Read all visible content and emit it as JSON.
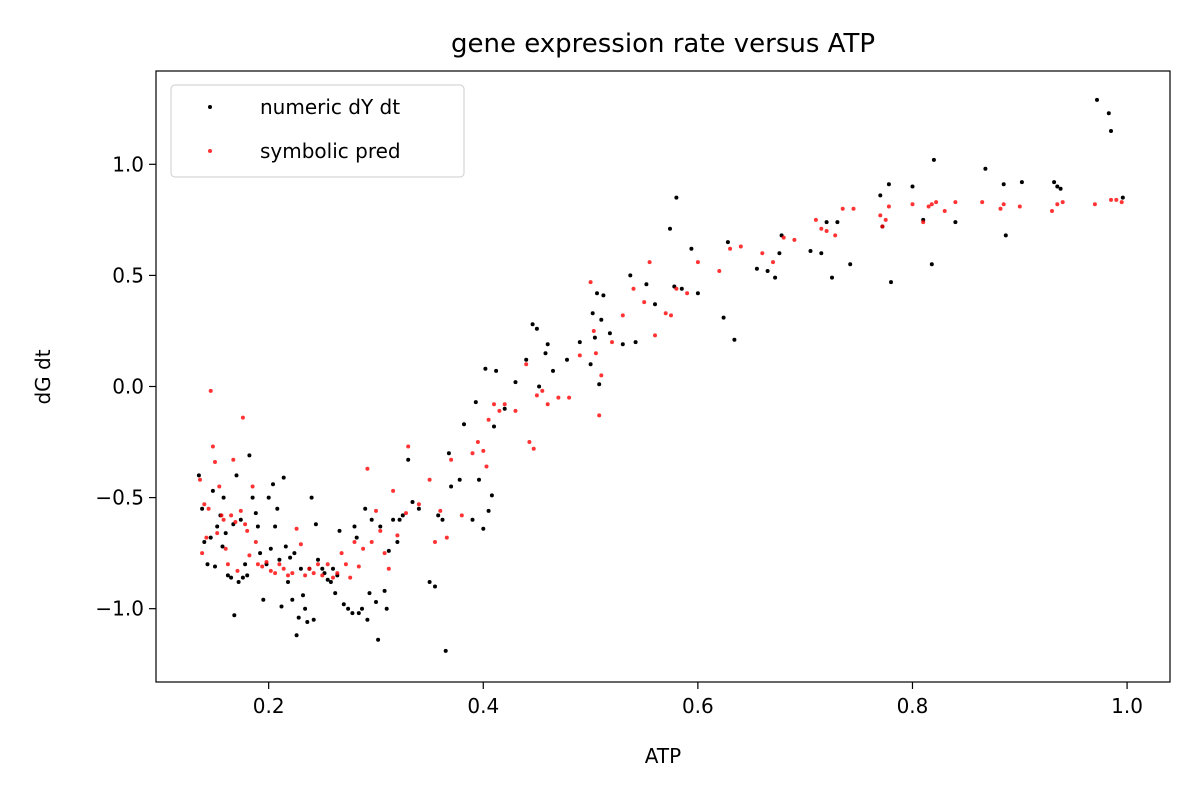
{
  "chart_data": {
    "type": "scatter",
    "title": "gene expression rate versus ATP",
    "xlabel": "ATP",
    "ylabel": "dG dt",
    "xlim": [
      0.095,
      1.04
    ],
    "ylim": [
      -1.33,
      1.42
    ],
    "xticks": [
      0.2,
      0.4,
      0.6,
      0.8,
      1.0
    ],
    "xtick_labels": [
      "0.2",
      "0.4",
      "0.6",
      "0.8",
      "1.0"
    ],
    "yticks": [
      -1.0,
      -0.5,
      0.0,
      0.5,
      1.0
    ],
    "ytick_labels": [
      "−1.0",
      "−0.5",
      "0.0",
      "0.5",
      "1.0"
    ],
    "grid": false,
    "legend": {
      "position": "top-left"
    },
    "series": [
      {
        "name": "numeric dY dt",
        "color": "#000000",
        "points": [
          [
            0.135,
            -0.4
          ],
          [
            0.138,
            -0.55
          ],
          [
            0.14,
            -0.7
          ],
          [
            0.143,
            -0.8
          ],
          [
            0.146,
            -0.68
          ],
          [
            0.148,
            -0.47
          ],
          [
            0.15,
            -0.81
          ],
          [
            0.152,
            -0.63
          ],
          [
            0.155,
            -0.58
          ],
          [
            0.157,
            -0.72
          ],
          [
            0.158,
            -0.5
          ],
          [
            0.16,
            -0.66
          ],
          [
            0.162,
            -0.85
          ],
          [
            0.165,
            -0.86
          ],
          [
            0.167,
            -0.62
          ],
          [
            0.168,
            -1.03
          ],
          [
            0.17,
            -0.4
          ],
          [
            0.172,
            -0.88
          ],
          [
            0.174,
            -0.6
          ],
          [
            0.176,
            -0.86
          ],
          [
            0.178,
            -0.8
          ],
          [
            0.18,
            -0.85
          ],
          [
            0.182,
            -0.31
          ],
          [
            0.185,
            -0.5
          ],
          [
            0.188,
            -0.57
          ],
          [
            0.19,
            -0.63
          ],
          [
            0.192,
            -0.75
          ],
          [
            0.195,
            -0.96
          ],
          [
            0.198,
            -0.8
          ],
          [
            0.2,
            -0.5
          ],
          [
            0.202,
            -0.73
          ],
          [
            0.204,
            -0.44
          ],
          [
            0.206,
            -0.63
          ],
          [
            0.208,
            -0.55
          ],
          [
            0.21,
            -0.78
          ],
          [
            0.212,
            -0.99
          ],
          [
            0.214,
            -0.41
          ],
          [
            0.216,
            -0.72
          ],
          [
            0.218,
            -0.88
          ],
          [
            0.22,
            -0.77
          ],
          [
            0.222,
            -0.96
          ],
          [
            0.224,
            -0.75
          ],
          [
            0.226,
            -1.12
          ],
          [
            0.228,
            -1.04
          ],
          [
            0.23,
            -0.82
          ],
          [
            0.232,
            -0.94
          ],
          [
            0.234,
            -1.0
          ],
          [
            0.236,
            -1.06
          ],
          [
            0.238,
            -0.82
          ],
          [
            0.24,
            -0.5
          ],
          [
            0.242,
            -1.05
          ],
          [
            0.244,
            -0.62
          ],
          [
            0.246,
            -0.78
          ],
          [
            0.25,
            -0.82
          ],
          [
            0.252,
            -0.84
          ],
          [
            0.255,
            -0.87
          ],
          [
            0.258,
            -0.88
          ],
          [
            0.26,
            -0.82
          ],
          [
            0.262,
            -0.93
          ],
          [
            0.264,
            -0.85
          ],
          [
            0.266,
            -0.65
          ],
          [
            0.27,
            -0.98
          ],
          [
            0.274,
            -1.0
          ],
          [
            0.278,
            -1.02
          ],
          [
            0.28,
            -0.63
          ],
          [
            0.282,
            -0.68
          ],
          [
            0.284,
            -1.02
          ],
          [
            0.287,
            -1.0
          ],
          [
            0.29,
            -0.55
          ],
          [
            0.292,
            -1.05
          ],
          [
            0.294,
            -0.93
          ],
          [
            0.296,
            -0.6
          ],
          [
            0.3,
            -0.97
          ],
          [
            0.302,
            -1.14
          ],
          [
            0.304,
            -0.63
          ],
          [
            0.308,
            -0.92
          ],
          [
            0.31,
            -1.0
          ],
          [
            0.312,
            -0.74
          ],
          [
            0.316,
            -0.6
          ],
          [
            0.32,
            -0.7
          ],
          [
            0.322,
            -0.6
          ],
          [
            0.325,
            -0.58
          ],
          [
            0.33,
            -0.33
          ],
          [
            0.334,
            -0.52
          ],
          [
            0.34,
            -0.55
          ],
          [
            0.35,
            -0.88
          ],
          [
            0.355,
            -0.9
          ],
          [
            0.358,
            -0.58
          ],
          [
            0.362,
            -0.6
          ],
          [
            0.365,
            -1.19
          ],
          [
            0.368,
            -0.3
          ],
          [
            0.37,
            -0.45
          ],
          [
            0.378,
            -0.42
          ],
          [
            0.382,
            -0.17
          ],
          [
            0.39,
            -0.6
          ],
          [
            0.393,
            -0.07
          ],
          [
            0.396,
            -0.42
          ],
          [
            0.4,
            -0.64
          ],
          [
            0.402,
            0.08
          ],
          [
            0.405,
            -0.56
          ],
          [
            0.408,
            -0.49
          ],
          [
            0.41,
            -0.18
          ],
          [
            0.412,
            0.07
          ],
          [
            0.42,
            -0.1
          ],
          [
            0.43,
            0.02
          ],
          [
            0.44,
            0.12
          ],
          [
            0.446,
            0.28
          ],
          [
            0.45,
            0.26
          ],
          [
            0.452,
            0.0
          ],
          [
            0.458,
            0.15
          ],
          [
            0.46,
            0.19
          ],
          [
            0.465,
            0.07
          ],
          [
            0.478,
            0.12
          ],
          [
            0.49,
            0.2
          ],
          [
            0.5,
            0.1
          ],
          [
            0.502,
            0.33
          ],
          [
            0.504,
            0.22
          ],
          [
            0.506,
            0.42
          ],
          [
            0.508,
            0.01
          ],
          [
            0.51,
            0.3
          ],
          [
            0.512,
            0.41
          ],
          [
            0.518,
            0.24
          ],
          [
            0.53,
            0.19
          ],
          [
            0.537,
            0.5
          ],
          [
            0.542,
            0.2
          ],
          [
            0.552,
            0.46
          ],
          [
            0.56,
            0.37
          ],
          [
            0.574,
            0.71
          ],
          [
            0.578,
            0.45
          ],
          [
            0.58,
            0.85
          ],
          [
            0.585,
            0.44
          ],
          [
            0.594,
            0.62
          ],
          [
            0.6,
            0.42
          ],
          [
            0.624,
            0.31
          ],
          [
            0.628,
            0.65
          ],
          [
            0.634,
            0.21
          ],
          [
            0.655,
            0.53
          ],
          [
            0.665,
            0.52
          ],
          [
            0.672,
            0.49
          ],
          [
            0.676,
            0.6
          ],
          [
            0.678,
            0.68
          ],
          [
            0.705,
            0.61
          ],
          [
            0.715,
            0.6
          ],
          [
            0.72,
            0.74
          ],
          [
            0.725,
            0.49
          ],
          [
            0.73,
            0.74
          ],
          [
            0.742,
            0.55
          ],
          [
            0.77,
            0.86
          ],
          [
            0.772,
            0.72
          ],
          [
            0.778,
            0.91
          ],
          [
            0.78,
            0.47
          ],
          [
            0.8,
            0.9
          ],
          [
            0.81,
            0.75
          ],
          [
            0.818,
            0.55
          ],
          [
            0.82,
            1.02
          ],
          [
            0.84,
            0.74
          ],
          [
            0.868,
            0.98
          ],
          [
            0.885,
            0.91
          ],
          [
            0.887,
            0.68
          ],
          [
            0.902,
            0.92
          ],
          [
            0.932,
            0.92
          ],
          [
            0.935,
            0.9
          ],
          [
            0.938,
            0.89
          ],
          [
            0.972,
            1.29
          ],
          [
            0.983,
            1.23
          ],
          [
            0.985,
            1.15
          ],
          [
            0.996,
            0.85
          ]
        ]
      },
      {
        "name": "symbolic pred",
        "color": "#ff0000",
        "points": [
          [
            0.136,
            -0.42
          ],
          [
            0.138,
            -0.75
          ],
          [
            0.14,
            -0.53
          ],
          [
            0.142,
            -0.68
          ],
          [
            0.144,
            -0.55
          ],
          [
            0.146,
            -0.02
          ],
          [
            0.148,
            -0.27
          ],
          [
            0.15,
            -0.34
          ],
          [
            0.152,
            -0.66
          ],
          [
            0.154,
            -0.45
          ],
          [
            0.156,
            -0.58
          ],
          [
            0.158,
            -0.6
          ],
          [
            0.16,
            -0.73
          ],
          [
            0.162,
            -0.8
          ],
          [
            0.165,
            -0.58
          ],
          [
            0.167,
            -0.33
          ],
          [
            0.169,
            -0.61
          ],
          [
            0.171,
            -0.83
          ],
          [
            0.174,
            -0.56
          ],
          [
            0.176,
            -0.14
          ],
          [
            0.178,
            -0.62
          ],
          [
            0.18,
            -0.65
          ],
          [
            0.182,
            -0.76
          ],
          [
            0.185,
            -0.45
          ],
          [
            0.188,
            -0.7
          ],
          [
            0.19,
            -0.8
          ],
          [
            0.194,
            -0.81
          ],
          [
            0.198,
            -0.79
          ],
          [
            0.202,
            -0.83
          ],
          [
            0.206,
            -0.84
          ],
          [
            0.21,
            -0.8
          ],
          [
            0.214,
            -0.82
          ],
          [
            0.218,
            -0.85
          ],
          [
            0.222,
            -0.84
          ],
          [
            0.226,
            -0.64
          ],
          [
            0.23,
            -0.71
          ],
          [
            0.234,
            -0.85
          ],
          [
            0.238,
            -0.82
          ],
          [
            0.242,
            -0.84
          ],
          [
            0.246,
            -0.8
          ],
          [
            0.25,
            -0.85
          ],
          [
            0.255,
            -0.8
          ],
          [
            0.26,
            -0.86
          ],
          [
            0.264,
            -0.84
          ],
          [
            0.268,
            -0.75
          ],
          [
            0.272,
            -0.8
          ],
          [
            0.276,
            -0.86
          ],
          [
            0.28,
            -0.7
          ],
          [
            0.284,
            -0.81
          ],
          [
            0.288,
            -0.73
          ],
          [
            0.292,
            -0.37
          ],
          [
            0.296,
            -0.7
          ],
          [
            0.3,
            -0.56
          ],
          [
            0.304,
            -0.65
          ],
          [
            0.308,
            -0.75
          ],
          [
            0.312,
            -0.82
          ],
          [
            0.316,
            -0.47
          ],
          [
            0.32,
            -0.67
          ],
          [
            0.328,
            -0.57
          ],
          [
            0.33,
            -0.27
          ],
          [
            0.34,
            -0.53
          ],
          [
            0.35,
            -0.42
          ],
          [
            0.355,
            -0.7
          ],
          [
            0.36,
            -0.56
          ],
          [
            0.366,
            -0.68
          ],
          [
            0.37,
            -0.33
          ],
          [
            0.38,
            -0.58
          ],
          [
            0.39,
            -0.3
          ],
          [
            0.395,
            -0.25
          ],
          [
            0.4,
            -0.29
          ],
          [
            0.403,
            -0.36
          ],
          [
            0.405,
            -0.15
          ],
          [
            0.41,
            -0.08
          ],
          [
            0.415,
            -0.11
          ],
          [
            0.42,
            -0.08
          ],
          [
            0.43,
            -0.11
          ],
          [
            0.44,
            0.1
          ],
          [
            0.443,
            -0.25
          ],
          [
            0.447,
            -0.28
          ],
          [
            0.45,
            -0.04
          ],
          [
            0.455,
            -0.02
          ],
          [
            0.46,
            -0.08
          ],
          [
            0.47,
            -0.05
          ],
          [
            0.48,
            -0.05
          ],
          [
            0.49,
            0.14
          ],
          [
            0.5,
            0.47
          ],
          [
            0.503,
            0.25
          ],
          [
            0.505,
            0.15
          ],
          [
            0.508,
            -0.13
          ],
          [
            0.51,
            0.05
          ],
          [
            0.52,
            0.2
          ],
          [
            0.53,
            0.32
          ],
          [
            0.54,
            0.44
          ],
          [
            0.55,
            0.38
          ],
          [
            0.555,
            0.56
          ],
          [
            0.56,
            0.23
          ],
          [
            0.57,
            0.33
          ],
          [
            0.575,
            0.32
          ],
          [
            0.58,
            0.44
          ],
          [
            0.59,
            0.42
          ],
          [
            0.6,
            0.56
          ],
          [
            0.62,
            0.52
          ],
          [
            0.63,
            0.62
          ],
          [
            0.64,
            0.63
          ],
          [
            0.66,
            0.6
          ],
          [
            0.67,
            0.56
          ],
          [
            0.68,
            0.67
          ],
          [
            0.69,
            0.66
          ],
          [
            0.71,
            0.75
          ],
          [
            0.715,
            0.71
          ],
          [
            0.72,
            0.7
          ],
          [
            0.728,
            0.68
          ],
          [
            0.735,
            0.8
          ],
          [
            0.745,
            0.8
          ],
          [
            0.77,
            0.77
          ],
          [
            0.772,
            0.72
          ],
          [
            0.775,
            0.75
          ],
          [
            0.778,
            0.81
          ],
          [
            0.8,
            0.82
          ],
          [
            0.81,
            0.74
          ],
          [
            0.815,
            0.81
          ],
          [
            0.818,
            0.82
          ],
          [
            0.822,
            0.83
          ],
          [
            0.83,
            0.79
          ],
          [
            0.84,
            0.83
          ],
          [
            0.865,
            0.83
          ],
          [
            0.882,
            0.8
          ],
          [
            0.885,
            0.82
          ],
          [
            0.9,
            0.81
          ],
          [
            0.93,
            0.79
          ],
          [
            0.935,
            0.82
          ],
          [
            0.94,
            0.83
          ],
          [
            0.97,
            0.82
          ],
          [
            0.985,
            0.84
          ],
          [
            0.99,
            0.84
          ],
          [
            0.995,
            0.83
          ]
        ]
      }
    ]
  }
}
